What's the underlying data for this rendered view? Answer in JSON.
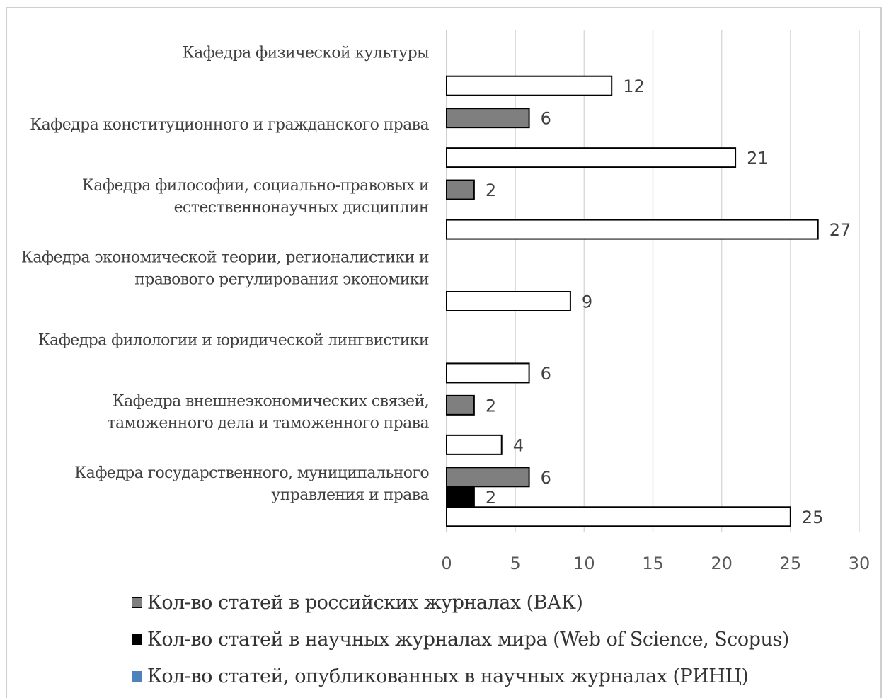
{
  "chart_data": {
    "type": "bar",
    "orientation": "horizontal",
    "categories": [
      [
        "Кафедра физической культуры"
      ],
      [
        "Кафедра конституционного и гражданского права"
      ],
      [
        "Кафедра философии, социально-правовых и",
        "естественнонаучных дисциплин"
      ],
      [
        "Кафедра экономической теории, регионалистики и",
        "правового регулирования экономики"
      ],
      [
        "Кафедра филологии и юридической лингвистики"
      ],
      [
        "Кафедра внешнеэкономических связей,",
        "таможенного дела и таможенного права"
      ],
      [
        "Кафедра государственного, муниципального",
        "управления и права"
      ]
    ],
    "series": [
      {
        "name": "Кол-во статей в российских журналах (ВАК)",
        "color": "#7f7f7f",
        "values": [
          null,
          6,
          2,
          null,
          null,
          2,
          6
        ]
      },
      {
        "name": "Кол-во статей в научных журналах мира (Web of Science, Scopus)",
        "color": "#000000",
        "values": [
          null,
          null,
          null,
          null,
          null,
          null,
          2
        ]
      },
      {
        "name": "Кол-во статей, опубликованных в научных журналах (РИНЦ)",
        "color": "#ffffff",
        "legend_color": "#4f81bd",
        "values": [
          12,
          21,
          27,
          9,
          6,
          4,
          25
        ]
      }
    ],
    "xlim": [
      0,
      30
    ],
    "x_ticks": [
      0,
      5,
      10,
      15,
      20,
      25,
      30
    ],
    "grid": "vertical",
    "legend_position": "bottom",
    "title": "",
    "xlabel": "",
    "ylabel": ""
  }
}
